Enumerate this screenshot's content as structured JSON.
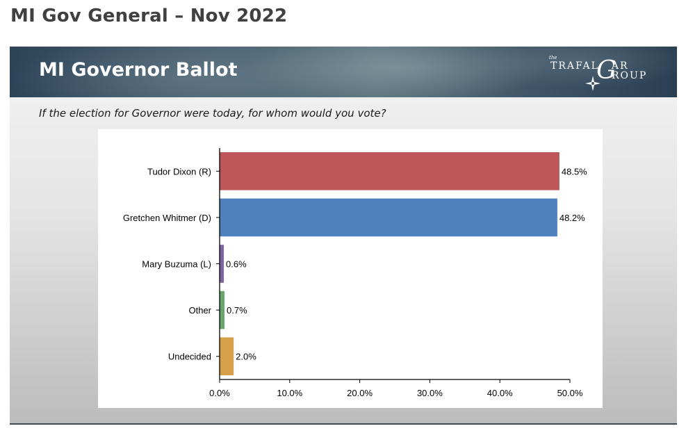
{
  "page": {
    "title": "MI Gov General – Nov 2022"
  },
  "slide": {
    "title": "MI Governor Ballot",
    "question": "If the election for Governor were today, for whom would you vote?",
    "logo": {
      "the": "the",
      "line1": "TRAFAL",
      "big": "G",
      "line1b": "AR",
      "line2": "ROUP",
      "icon": "compass-rose-icon"
    }
  },
  "chart_data": {
    "type": "bar",
    "orientation": "horizontal",
    "categories": [
      "Tudor Dixon (R)",
      "Gretchen Whitmer (D)",
      "Mary Buzuma (L)",
      "Other",
      "Undecided"
    ],
    "values": [
      48.5,
      48.2,
      0.6,
      0.7,
      2.0
    ],
    "value_labels": [
      "48.5%",
      "48.2%",
      "0.6%",
      "0.7%",
      "2.0%"
    ],
    "colors": [
      "#bc5758",
      "#4f81bd",
      "#8064a2",
      "#6aa56e",
      "#d6a04a"
    ],
    "xlim": [
      0,
      50
    ],
    "xticks": [
      "0.0%",
      "10.0%",
      "20.0%",
      "30.0%",
      "40.0%",
      "50.0%"
    ],
    "grid": false,
    "legend": "none"
  }
}
